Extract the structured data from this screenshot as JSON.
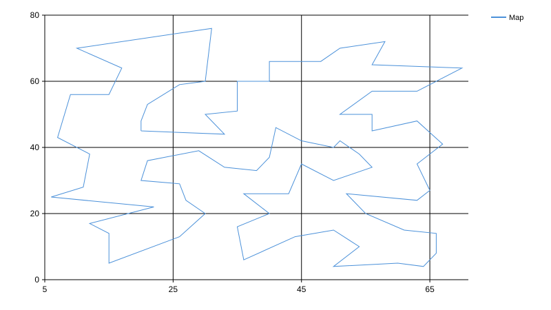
{
  "chart_data": {
    "type": "line",
    "title": "",
    "xlabel": "",
    "ylabel": "",
    "xlim": [
      5,
      71
    ],
    "ylim": [
      0,
      80
    ],
    "x_ticks": [
      5,
      25,
      45,
      65
    ],
    "y_ticks": [
      0,
      20,
      40,
      60,
      80
    ],
    "grid": true,
    "legend_position": "top-right",
    "series": [
      {
        "name": "Map",
        "color": "#4a90d9",
        "points": [
          [
            20,
            45
          ],
          [
            20,
            48
          ],
          [
            21,
            53
          ],
          [
            26,
            59
          ],
          [
            30,
            60
          ],
          [
            31,
            76
          ],
          [
            10,
            70
          ],
          [
            17,
            64
          ],
          [
            15,
            56
          ],
          [
            9,
            56
          ],
          [
            7,
            43
          ],
          [
            12,
            38
          ],
          [
            11,
            28
          ],
          [
            6,
            25
          ],
          [
            22,
            22
          ],
          [
            12,
            17
          ],
          [
            15,
            14
          ],
          [
            15,
            5
          ],
          [
            26,
            13
          ],
          [
            30,
            20
          ],
          [
            27,
            24
          ],
          [
            26,
            29
          ],
          [
            20,
            30
          ],
          [
            21,
            36
          ],
          [
            29,
            39
          ],
          [
            33,
            34
          ],
          [
            38,
            33
          ],
          [
            40,
            37
          ],
          [
            41,
            46
          ],
          [
            45,
            42
          ],
          [
            50,
            40
          ],
          [
            51,
            42
          ],
          [
            54,
            38
          ],
          [
            56,
            34
          ],
          [
            50,
            30
          ],
          [
            45,
            35
          ],
          [
            43,
            26
          ],
          [
            36,
            26
          ],
          [
            40,
            20
          ],
          [
            35,
            16
          ],
          [
            36,
            6
          ],
          [
            44,
            13
          ],
          [
            50,
            15
          ],
          [
            54,
            10
          ],
          [
            50,
            4
          ],
          [
            60,
            5
          ],
          [
            64,
            4
          ],
          [
            66,
            8
          ],
          [
            66,
            14
          ],
          [
            61,
            15
          ],
          [
            55,
            20
          ],
          [
            52,
            26
          ],
          [
            63,
            24
          ],
          [
            65,
            27
          ],
          [
            63,
            35
          ],
          [
            67,
            41
          ],
          [
            63,
            48
          ],
          [
            56,
            45
          ],
          [
            56,
            50
          ],
          [
            51,
            50
          ],
          [
            56,
            57
          ],
          [
            63,
            57
          ],
          [
            70,
            64
          ],
          [
            56,
            65
          ],
          [
            58,
            72
          ],
          [
            51,
            70
          ],
          [
            48,
            66
          ],
          [
            45,
            66
          ],
          [
            40,
            66
          ],
          [
            40,
            60
          ],
          [
            35,
            60
          ],
          [
            35,
            51
          ],
          [
            30,
            50
          ],
          [
            33,
            44
          ],
          [
            20,
            45
          ]
        ]
      }
    ]
  }
}
